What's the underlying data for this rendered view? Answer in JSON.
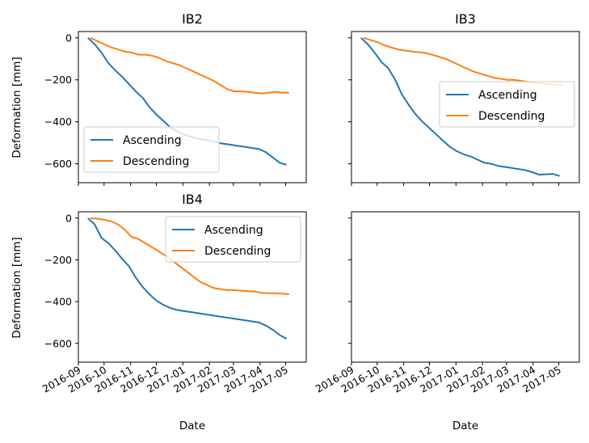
{
  "chart_data": {
    "type": "line",
    "xlabel": "Date",
    "ylabel": "Deformation [mm]",
    "ylim": [
      -690,
      30
    ],
    "xlim": [
      "2016-09-01",
      "2017-05-25"
    ],
    "yticks": [
      0,
      -200,
      -400,
      -600
    ],
    "ytick_labels": [
      "0",
      "−200",
      "−400",
      "−600"
    ],
    "xticks": [
      "2016-09-01",
      "2016-10-01",
      "2016-11-01",
      "2016-12-01",
      "2017-01-01",
      "2017-02-01",
      "2017-03-01",
      "2017-04-01",
      "2017-05-01"
    ],
    "xtick_labels": [
      "2016-09",
      "2016-10",
      "2016-11",
      "2016-12",
      "2017-01",
      "2017-02",
      "2017-03",
      "2017-04",
      "2017-05"
    ],
    "colors": {
      "Ascending": "#1f77b4",
      "Descending": "#ff7f0e"
    },
    "panels": [
      {
        "title": "IB2",
        "legend": "lower-left",
        "series": [
          {
            "name": "Ascending",
            "points": [
              [
                "2016-09-12",
                0
              ],
              [
                "2016-09-20",
                -30
              ],
              [
                "2016-09-28",
                -70
              ],
              [
                "2016-10-06",
                -120
              ],
              [
                "2016-10-14",
                -155
              ],
              [
                "2016-10-22",
                -185
              ],
              [
                "2016-10-30",
                -220
              ],
              [
                "2016-11-07",
                -255
              ],
              [
                "2016-11-15",
                -285
              ],
              [
                "2016-11-23",
                -330
              ],
              [
                "2016-12-01",
                -365
              ],
              [
                "2016-12-09",
                -395
              ],
              [
                "2016-12-17",
                -425
              ],
              [
                "2016-12-25",
                -445
              ],
              [
                "2017-01-02",
                -460
              ],
              [
                "2017-01-10",
                -470
              ],
              [
                "2017-01-18",
                -480
              ],
              [
                "2017-01-26",
                -485
              ],
              [
                "2017-02-03",
                -490
              ],
              [
                "2017-02-11",
                -500
              ],
              [
                "2017-02-19",
                -505
              ],
              [
                "2017-02-27",
                -510
              ],
              [
                "2017-03-07",
                -515
              ],
              [
                "2017-03-15",
                -520
              ],
              [
                "2017-03-23",
                -525
              ],
              [
                "2017-03-31",
                -530
              ],
              [
                "2017-04-08",
                -545
              ],
              [
                "2017-04-16",
                -570
              ],
              [
                "2017-04-24",
                -595
              ],
              [
                "2017-05-02",
                -605
              ]
            ]
          },
          {
            "name": "Descending",
            "points": [
              [
                "2016-09-15",
                0
              ],
              [
                "2016-09-23",
                -15
              ],
              [
                "2016-10-01",
                -30
              ],
              [
                "2016-10-09",
                -45
              ],
              [
                "2016-10-17",
                -55
              ],
              [
                "2016-10-25",
                -65
              ],
              [
                "2016-11-02",
                -70
              ],
              [
                "2016-11-10",
                -80
              ],
              [
                "2016-11-18",
                -80
              ],
              [
                "2016-11-26",
                -85
              ],
              [
                "2016-12-04",
                -95
              ],
              [
                "2016-12-12",
                -110
              ],
              [
                "2016-12-20",
                -120
              ],
              [
                "2016-12-28",
                -130
              ],
              [
                "2017-01-05",
                -145
              ],
              [
                "2017-01-13",
                -160
              ],
              [
                "2017-01-21",
                -175
              ],
              [
                "2017-01-29",
                -190
              ],
              [
                "2017-02-06",
                -205
              ],
              [
                "2017-02-14",
                -225
              ],
              [
                "2017-02-22",
                -245
              ],
              [
                "2017-03-02",
                -255
              ],
              [
                "2017-03-10",
                -255
              ],
              [
                "2017-03-18",
                -258
              ],
              [
                "2017-03-26",
                -262
              ],
              [
                "2017-04-03",
                -265
              ],
              [
                "2017-04-11",
                -262
              ],
              [
                "2017-04-19",
                -258
              ],
              [
                "2017-04-27",
                -262
              ],
              [
                "2017-05-05",
                -262
              ]
            ]
          }
        ]
      },
      {
        "title": "IB3",
        "legend": "center-right",
        "series": [
          {
            "name": "Ascending",
            "points": [
              [
                "2016-09-12",
                0
              ],
              [
                "2016-09-20",
                -30
              ],
              [
                "2016-09-28",
                -70
              ],
              [
                "2016-10-06",
                -115
              ],
              [
                "2016-10-14",
                -145
              ],
              [
                "2016-10-22",
                -200
              ],
              [
                "2016-10-30",
                -270
              ],
              [
                "2016-11-07",
                -320
              ],
              [
                "2016-11-15",
                -365
              ],
              [
                "2016-11-23",
                -400
              ],
              [
                "2016-12-01",
                -430
              ],
              [
                "2016-12-09",
                -460
              ],
              [
                "2016-12-17",
                -490
              ],
              [
                "2016-12-25",
                -520
              ],
              [
                "2017-01-02",
                -540
              ],
              [
                "2017-01-10",
                -555
              ],
              [
                "2017-01-18",
                -565
              ],
              [
                "2017-01-26",
                -580
              ],
              [
                "2017-02-03",
                -595
              ],
              [
                "2017-02-11",
                -600
              ],
              [
                "2017-02-19",
                -610
              ],
              [
                "2017-02-27",
                -615
              ],
              [
                "2017-03-07",
                -620
              ],
              [
                "2017-03-15",
                -625
              ],
              [
                "2017-03-23",
                -630
              ],
              [
                "2017-03-31",
                -640
              ],
              [
                "2017-04-08",
                -652
              ],
              [
                "2017-04-16",
                -650
              ],
              [
                "2017-04-24",
                -648
              ],
              [
                "2017-05-02",
                -658
              ]
            ]
          },
          {
            "name": "Descending",
            "points": [
              [
                "2016-09-15",
                0
              ],
              [
                "2016-09-23",
                -10
              ],
              [
                "2016-10-01",
                -20
              ],
              [
                "2016-10-09",
                -35
              ],
              [
                "2016-10-17",
                -45
              ],
              [
                "2016-10-25",
                -55
              ],
              [
                "2016-11-02",
                -60
              ],
              [
                "2016-11-10",
                -65
              ],
              [
                "2016-11-18",
                -68
              ],
              [
                "2016-11-26",
                -72
              ],
              [
                "2016-12-04",
                -80
              ],
              [
                "2016-12-12",
                -90
              ],
              [
                "2016-12-20",
                -100
              ],
              [
                "2016-12-28",
                -115
              ],
              [
                "2017-01-05",
                -130
              ],
              [
                "2017-01-13",
                -145
              ],
              [
                "2017-01-21",
                -160
              ],
              [
                "2017-01-29",
                -170
              ],
              [
                "2017-02-06",
                -180
              ],
              [
                "2017-02-14",
                -190
              ],
              [
                "2017-02-22",
                -195
              ],
              [
                "2017-03-02",
                -200
              ],
              [
                "2017-03-10",
                -200
              ],
              [
                "2017-03-18",
                -205
              ],
              [
                "2017-03-26",
                -210
              ],
              [
                "2017-04-03",
                -215
              ],
              [
                "2017-04-11",
                -218
              ],
              [
                "2017-04-19",
                -220
              ],
              [
                "2017-04-27",
                -222
              ],
              [
                "2017-05-05",
                -225
              ]
            ]
          }
        ]
      },
      {
        "title": "IB4",
        "legend": "upper-right",
        "series": [
          {
            "name": "Ascending",
            "points": [
              [
                "2016-09-12",
                0
              ],
              [
                "2016-09-20",
                -30
              ],
              [
                "2016-09-28",
                -95
              ],
              [
                "2016-10-06",
                -120
              ],
              [
                "2016-10-14",
                -155
              ],
              [
                "2016-10-22",
                -195
              ],
              [
                "2016-10-30",
                -230
              ],
              [
                "2016-11-07",
                -285
              ],
              [
                "2016-11-15",
                -330
              ],
              [
                "2016-11-23",
                -365
              ],
              [
                "2016-12-01",
                -395
              ],
              [
                "2016-12-09",
                -415
              ],
              [
                "2016-12-17",
                -430
              ],
              [
                "2016-12-25",
                -440
              ],
              [
                "2017-01-02",
                -445
              ],
              [
                "2017-01-10",
                -450
              ],
              [
                "2017-01-18",
                -455
              ],
              [
                "2017-01-26",
                -460
              ],
              [
                "2017-02-03",
                -465
              ],
              [
                "2017-02-11",
                -470
              ],
              [
                "2017-02-19",
                -475
              ],
              [
                "2017-02-27",
                -480
              ],
              [
                "2017-03-07",
                -485
              ],
              [
                "2017-03-15",
                -490
              ],
              [
                "2017-03-23",
                -495
              ],
              [
                "2017-03-31",
                -500
              ],
              [
                "2017-04-08",
                -515
              ],
              [
                "2017-04-16",
                -535
              ],
              [
                "2017-04-24",
                -560
              ],
              [
                "2017-05-02",
                -578
              ]
            ]
          },
          {
            "name": "Descending",
            "points": [
              [
                "2016-09-15",
                0
              ],
              [
                "2016-09-23",
                -3
              ],
              [
                "2016-10-01",
                -8
              ],
              [
                "2016-10-09",
                -15
              ],
              [
                "2016-10-17",
                -30
              ],
              [
                "2016-10-25",
                -55
              ],
              [
                "2016-11-02",
                -90
              ],
              [
                "2016-11-10",
                -100
              ],
              [
                "2016-11-18",
                -120
              ],
              [
                "2016-11-26",
                -140
              ],
              [
                "2016-12-04",
                -160
              ],
              [
                "2016-12-12",
                -180
              ],
              [
                "2016-12-20",
                -205
              ],
              [
                "2016-12-28",
                -230
              ],
              [
                "2017-01-05",
                -255
              ],
              [
                "2017-01-13",
                -280
              ],
              [
                "2017-01-21",
                -305
              ],
              [
                "2017-01-29",
                -320
              ],
              [
                "2017-02-06",
                -335
              ],
              [
                "2017-02-14",
                -340
              ],
              [
                "2017-02-22",
                -345
              ],
              [
                "2017-03-02",
                -345
              ],
              [
                "2017-03-10",
                -348
              ],
              [
                "2017-03-18",
                -350
              ],
              [
                "2017-03-26",
                -352
              ],
              [
                "2017-04-03",
                -358
              ],
              [
                "2017-04-11",
                -360
              ],
              [
                "2017-04-19",
                -360
              ],
              [
                "2017-04-27",
                -362
              ],
              [
                "2017-05-05",
                -365
              ]
            ]
          }
        ]
      },
      {
        "title": "",
        "legend": "none",
        "series": []
      }
    ]
  }
}
